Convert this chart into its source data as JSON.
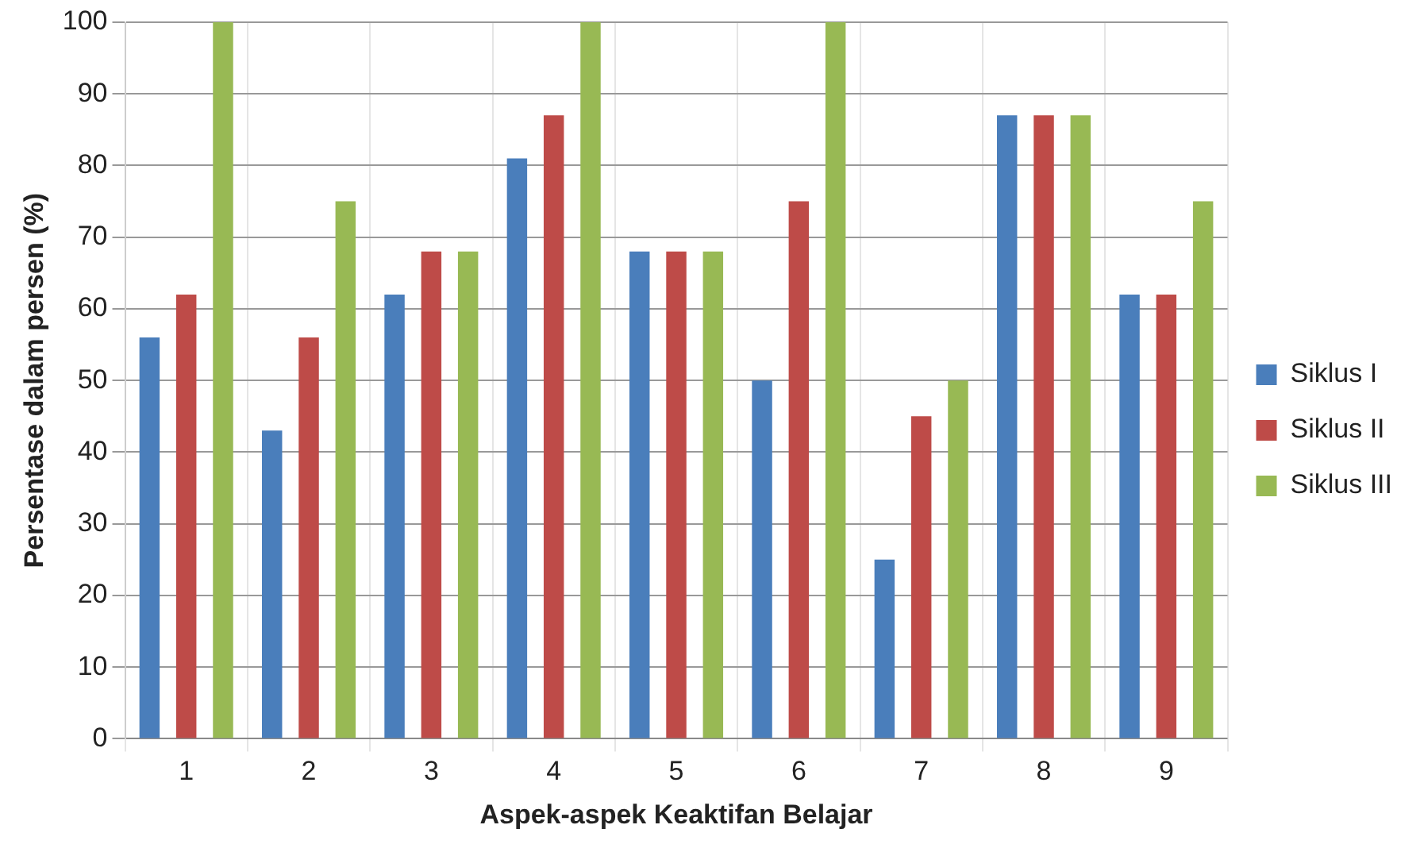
{
  "chart_data": {
    "type": "bar",
    "xlabel": "Aspek-aspek Keaktifan Belajar",
    "ylabel": "Persentase dalam persen (%)",
    "categories": [
      "1",
      "2",
      "3",
      "4",
      "5",
      "6",
      "7",
      "8",
      "9"
    ],
    "series": [
      {
        "name": "Siklus I",
        "color": "#4a7ebb",
        "values": [
          56,
          43,
          62,
          81,
          68,
          50,
          25,
          87,
          62
        ]
      },
      {
        "name": "Siklus II",
        "color": "#be4b48",
        "values": [
          62,
          56,
          68,
          87,
          68,
          75,
          45,
          87,
          62
        ]
      },
      {
        "name": "Siklus III",
        "color": "#98b954",
        "values": [
          100,
          75,
          68,
          100,
          68,
          100,
          50,
          87,
          75
        ]
      }
    ],
    "ylim": [
      0,
      100
    ],
    "yticks": [
      0,
      10,
      20,
      30,
      40,
      50,
      60,
      70,
      80,
      90,
      100
    ],
    "grid": true,
    "legend": "right"
  }
}
